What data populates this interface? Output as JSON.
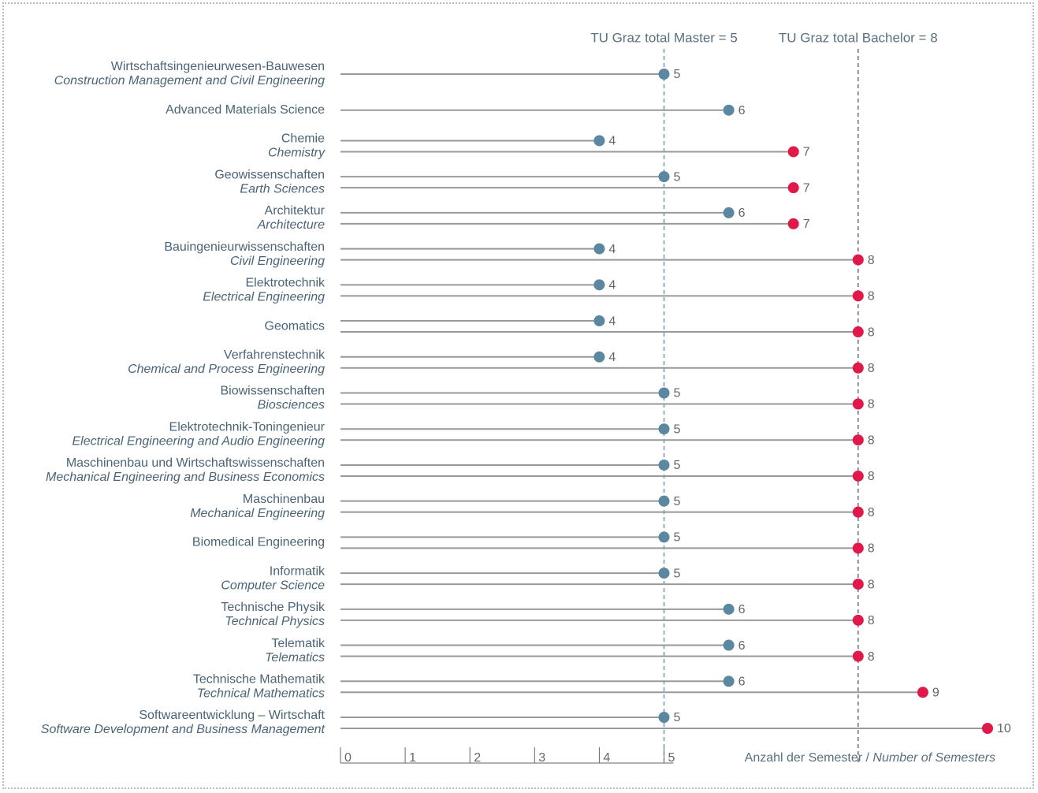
{
  "chart_data": {
    "type": "lollipop",
    "categories": [
      {
        "name": "Wirtschaftsingenieurwesen-Bauwesen",
        "subtitle": "Construction Management and Civil Engineering"
      },
      {
        "name": "Advanced Materials Science"
      },
      {
        "name": "Chemie",
        "subtitle": "Chemistry"
      },
      {
        "name": "Geowissenschaften",
        "subtitle": "Earth Sciences"
      },
      {
        "name": "Architektur",
        "subtitle": "Architecture"
      },
      {
        "name": "Bauingenieurwissenschaften",
        "subtitle": "Civil Engineering"
      },
      {
        "name": "Elektrotechnik",
        "subtitle": "Electrical Engineering"
      },
      {
        "name": "Geomatics"
      },
      {
        "name": "Verfahrenstechnik",
        "subtitle": "Chemical and Process Engineering"
      },
      {
        "name": "Biowissenschaften",
        "subtitle": "Biosciences"
      },
      {
        "name": "Elektrotechnik-Toningenieur",
        "subtitle": "Electrical Engineering and Audio Engineering"
      },
      {
        "name": "Maschinenbau und Wirtschaftswissenschaften",
        "subtitle": "Mechanical Engineering and Business Economics"
      },
      {
        "name": "Maschinenbau",
        "subtitle": "Mechanical Engineering"
      },
      {
        "name": "Biomedical Engineering"
      },
      {
        "name": "Informatik",
        "subtitle": "Computer Science"
      },
      {
        "name": "Technische Physik",
        "subtitle": "Technical Physics"
      },
      {
        "name": "Telematik",
        "subtitle": "Telematics"
      },
      {
        "name": "Technische Mathematik",
        "subtitle": "Technical Mathematics"
      },
      {
        "name": "Softwareentwicklung – Wirtschaft",
        "subtitle": "Software Development and Business Management"
      }
    ],
    "series": [
      {
        "color": "#5b87a0",
        "values": [
          5,
          6,
          4,
          5,
          6,
          4,
          4,
          4,
          4,
          5,
          5,
          5,
          5,
          5,
          5,
          6,
          6,
          6,
          5
        ]
      },
      {
        "color": "#e0194a",
        "values": [
          null,
          null,
          7,
          7,
          7,
          8,
          8,
          8,
          8,
          8,
          8,
          8,
          8,
          8,
          8,
          8,
          8,
          9,
          10
        ]
      }
    ],
    "reference_lines": [
      {
        "label": "TU Graz total Master = 5",
        "value": 5,
        "color": "#5b87a0"
      },
      {
        "label": "TU Graz total Bachelor = 8",
        "value": 8,
        "color": "#555555"
      }
    ],
    "xlabel": "Anzahl der Semester / ",
    "xlabel_italic": "Number of Semesters",
    "xlim": [
      0,
      10
    ],
    "xticks": [
      0,
      1,
      2,
      3,
      4,
      5
    ]
  }
}
